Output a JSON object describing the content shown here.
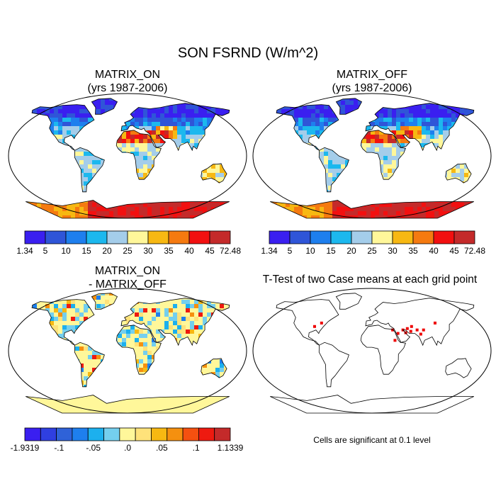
{
  "title": "SON FSRND (W/m^2)",
  "panels": [
    {
      "title": "MATRIX_ON",
      "subtitle": "(yrs 1987-2006)"
    },
    {
      "title": "MATRIX_OFF",
      "subtitle": "(yrs 1987-2006)"
    },
    {
      "title": "MATRIX_ON",
      "subtitle": "- MATRIX_OFF"
    },
    {
      "title": "T-Test of two Case means at each grid point",
      "subtitle": ""
    }
  ],
  "colorbars": {
    "absolute": {
      "colors": [
        "#3a1ff0",
        "#2f55d8",
        "#1e7fee",
        "#1cb8ee",
        "#a4cdea",
        "#fff79a",
        "#f7b812",
        "#f57a10",
        "#f21010",
        "#c42a2a"
      ],
      "labels": [
        "1.34",
        "5",
        "10",
        "15",
        "20",
        "25",
        "30",
        "35",
        "40",
        "45",
        "72.48"
      ]
    },
    "difference": {
      "colors": [
        "#3a1ff0",
        "#2f3fe0",
        "#2f62d8",
        "#1e7fee",
        "#1cb0ee",
        "#74cfee",
        "#fff79a",
        "#ffe27a",
        "#f7b812",
        "#f5900f",
        "#f55010",
        "#ee1a10",
        "#c42a2a"
      ],
      "labels": [
        "-1.9319",
        "-.1",
        "-.05",
        ".0",
        ".05",
        ".1",
        "1.1339"
      ]
    }
  },
  "significance_note": "Cells are significant at 0.1 level"
}
